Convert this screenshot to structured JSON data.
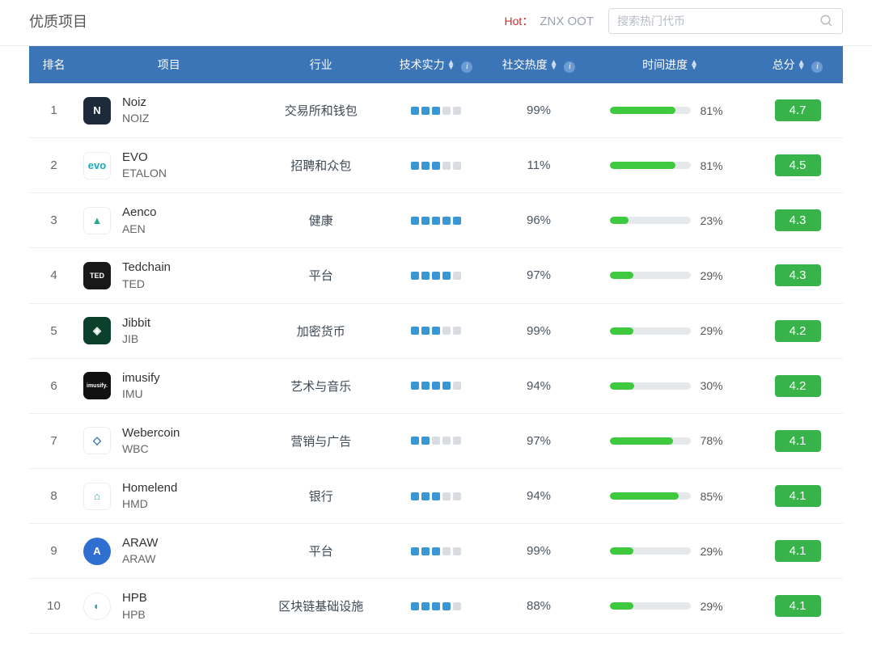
{
  "header": {
    "title": "优质项目",
    "hot_prefix": "Hot：",
    "hot_tags": "ZNX  OOT",
    "search_placeholder": "搜索热门代币"
  },
  "columns": {
    "rank": "排名",
    "project": "项目",
    "industry": "行业",
    "tech": "技术实力",
    "social": "社交热度",
    "timeline": "时间进度",
    "score": "总分"
  },
  "colors": {
    "header_bg": "#3b74b7",
    "dot_filled": "#3b96d4",
    "dot_empty": "#d9dde2",
    "progress_fill": "#3fc93f",
    "progress_bg": "#e6e9ec",
    "score_bg": "#37b34a",
    "hot_label": "#c9302c"
  },
  "tech_scale_max": 5,
  "rows": [
    {
      "rank": 1,
      "name": "Noiz",
      "symbol": "NOIZ",
      "industry": "交易所和钱包",
      "tech": 3,
      "social": "99%",
      "progress": 81,
      "progress_label": "81%",
      "score": "4.7",
      "logo_bg": "#1d2a3a",
      "logo_text": "N"
    },
    {
      "rank": 2,
      "name": "EVO",
      "symbol": "ETALON",
      "industry": "招聘和众包",
      "tech": 3,
      "social": "11%",
      "progress": 81,
      "progress_label": "81%",
      "score": "4.5",
      "logo_bg": "#ffffff",
      "logo_text": "evo",
      "logo_fg": "#1aa6b7",
      "logo_border": "#eee"
    },
    {
      "rank": 3,
      "name": "Aenco",
      "symbol": "AEN",
      "industry": "健康",
      "tech": 5,
      "social": "96%",
      "progress": 23,
      "progress_label": "23%",
      "score": "4.3",
      "logo_bg": "#ffffff",
      "logo_text": "▲",
      "logo_fg": "#2ea88b",
      "logo_border": "#eee"
    },
    {
      "rank": 4,
      "name": "Tedchain",
      "symbol": "TED",
      "industry": "平台",
      "tech": 4,
      "social": "97%",
      "progress": 29,
      "progress_label": "29%",
      "score": "4.3",
      "logo_bg": "#181818",
      "logo_text": "TED",
      "logo_fs": "9px"
    },
    {
      "rank": 5,
      "name": "Jibbit",
      "symbol": "JIB",
      "industry": "加密货币",
      "tech": 3,
      "social": "99%",
      "progress": 29,
      "progress_label": "29%",
      "score": "4.2",
      "logo_bg": "#0a402c",
      "logo_text": "◈"
    },
    {
      "rank": 6,
      "name": "imusify",
      "symbol": "IMU",
      "industry": "艺术与音乐",
      "tech": 4,
      "social": "94%",
      "progress": 30,
      "progress_label": "30%",
      "score": "4.2",
      "logo_bg": "#111111",
      "logo_text": "imusify.",
      "logo_fs": "7px"
    },
    {
      "rank": 7,
      "name": "Webercoin",
      "symbol": "WBC",
      "industry": "营销与广告",
      "tech": 2,
      "social": "97%",
      "progress": 78,
      "progress_label": "78%",
      "score": "4.1",
      "logo_bg": "#ffffff",
      "logo_text": "◇",
      "logo_fg": "#2b6aa8",
      "logo_border": "#eee"
    },
    {
      "rank": 8,
      "name": "Homelend",
      "symbol": "HMD",
      "industry": "银行",
      "tech": 3,
      "social": "94%",
      "progress": 85,
      "progress_label": "85%",
      "score": "4.1",
      "logo_bg": "#ffffff",
      "logo_text": "⌂",
      "logo_fg": "#3ba6a6",
      "logo_border": "#eee"
    },
    {
      "rank": 9,
      "name": "ARAW",
      "symbol": "ARAW",
      "industry": "平台",
      "tech": 3,
      "social": "99%",
      "progress": 29,
      "progress_label": "29%",
      "score": "4.1",
      "logo_bg": "#2f6fcf",
      "logo_text": "A",
      "logo_radius": "50%"
    },
    {
      "rank": 10,
      "name": "HPB",
      "symbol": "HPB",
      "industry": "区块链基础设施",
      "tech": 4,
      "social": "88%",
      "progress": 29,
      "progress_label": "29%",
      "score": "4.1",
      "logo_bg": "#ffffff",
      "logo_text": "◐",
      "logo_fg": "#3b9bcf",
      "logo_border": "#eee",
      "logo_radius": "50%"
    }
  ]
}
